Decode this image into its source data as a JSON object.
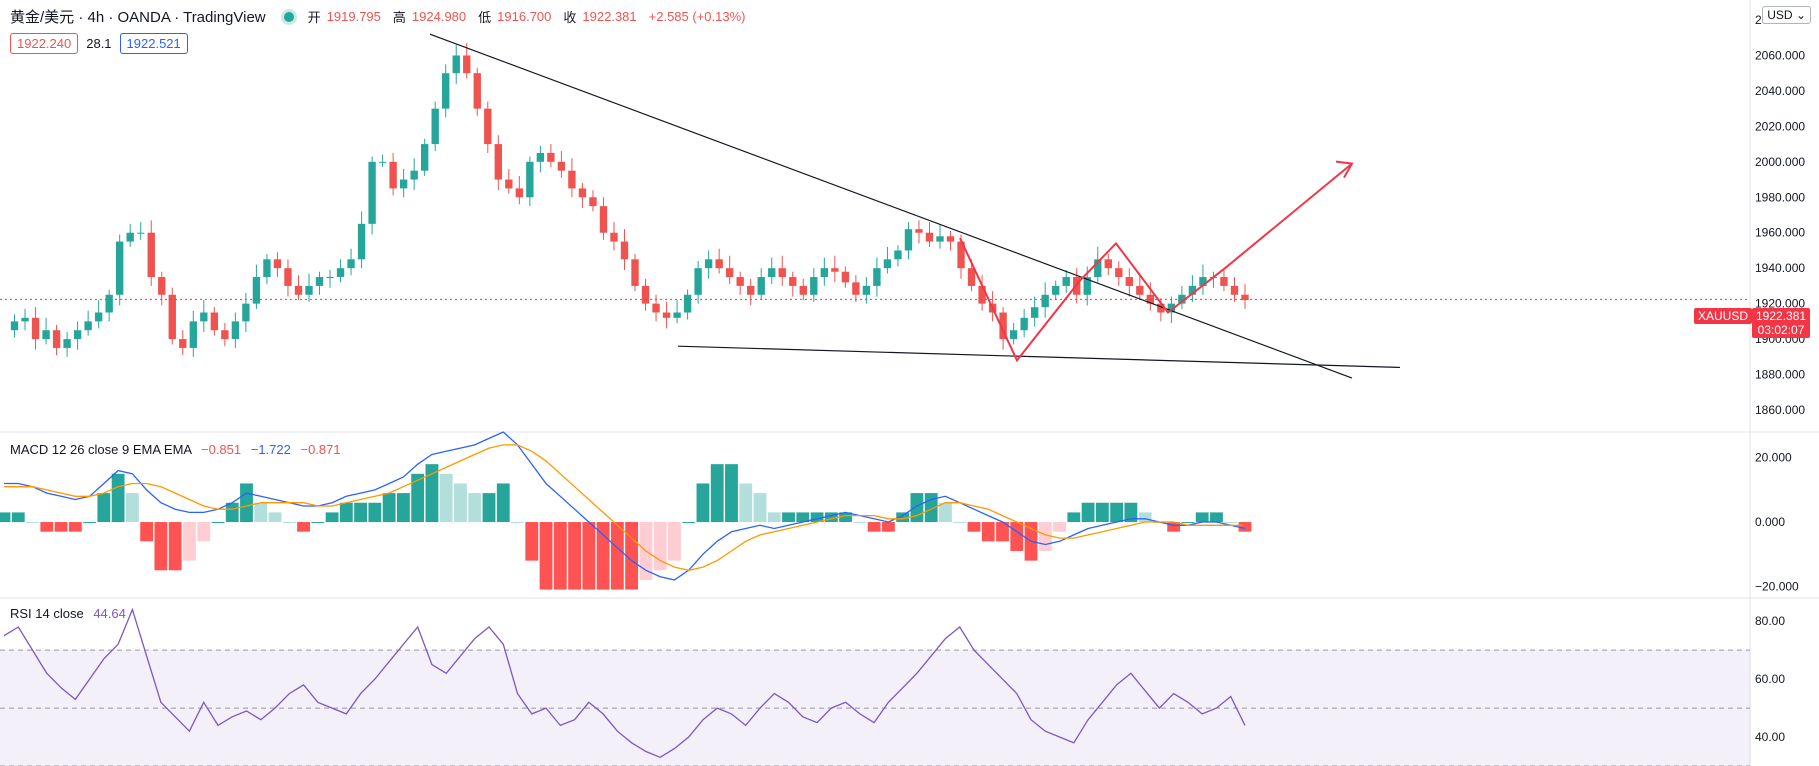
{
  "header": {
    "symbol": "黄金/美元 · 4h · OANDA · TradingView",
    "open_label": "开",
    "open": "1919.795",
    "high_label": "高",
    "high": "1924.980",
    "low_label": "低",
    "low": "1916.700",
    "close_label": "收",
    "close": "1922.381",
    "change": "+2.585 (+0.13%)"
  },
  "quote": {
    "sell": "1922.240",
    "spread": "28.1",
    "buy": "1922.521"
  },
  "currency_button": "USD",
  "price_tag": {
    "symbol": "XAUUSD",
    "price": "1922.381",
    "countdown": "03:02:07"
  },
  "macd": {
    "label": "MACD 12 26 close 9 EMA EMA",
    "v1": "−0.851",
    "v2": "−1.722",
    "v3": "−0.871"
  },
  "rsi": {
    "label": "RSI 14 close",
    "value": "44.64"
  },
  "colors": {
    "up": "#26a69a",
    "down": "#ef5350",
    "macd": "#2962ff",
    "signal": "#ff9800",
    "rsi": "#7e57c2",
    "trend": "#131722",
    "pattern": "#f23645"
  },
  "chart_data": [
    {
      "type": "candlestick",
      "title": "黄金/美元 · 4h · OANDA",
      "y_ticks": [
        "2080.000",
        "2060.000",
        "2040.000",
        "2020.000",
        "2000.000",
        "1980.000",
        "1960.000",
        "1940.000",
        "1920.000",
        "1900.000",
        "1880.000",
        "1860.000"
      ],
      "ylim": [
        1860,
        2080
      ],
      "close_path": [
        1905,
        1910,
        1912,
        1900,
        1905,
        1895,
        1900,
        1905,
        1910,
        1915,
        1925,
        1955,
        1960,
        1960,
        1935,
        1925,
        1900,
        1895,
        1910,
        1915,
        1905,
        1900,
        1910,
        1920,
        1935,
        1945,
        1940,
        1930,
        1925,
        1930,
        1935,
        1935,
        1940,
        1945,
        1965,
        2000,
        2000,
        1985,
        1990,
        1995,
        2010,
        2030,
        2050,
        2060,
        2050,
        2030,
        2010,
        1990,
        1985,
        1980,
        2000,
        2005,
        2000,
        1995,
        1985,
        1980,
        1975,
        1960,
        1955,
        1945,
        1930,
        1920,
        1915,
        1912,
        1915,
        1925,
        1940,
        1945,
        1940,
        1935,
        1930,
        1925,
        1935,
        1940,
        1935,
        1930,
        1925,
        1935,
        1940,
        1938,
        1932,
        1925,
        1930,
        1940,
        1945,
        1950,
        1962,
        1960,
        1955,
        1958,
        1955,
        1940,
        1930,
        1920,
        1915,
        1900,
        1905,
        1912,
        1918,
        1925,
        1930,
        1935,
        1925,
        1935,
        1945,
        1940,
        1935,
        1930,
        1925,
        1920,
        1915,
        1920,
        1925,
        1930,
        1935,
        1935,
        1930,
        1925,
        1922
      ],
      "trend_lines": [
        {
          "from": [
            1,
            2072
          ],
          "to": [
            2,
            1878
          ]
        },
        {
          "from": [
            1,
            1896
          ],
          "to": [
            2,
            1884
          ]
        }
      ],
      "pattern_path": [
        1957,
        1888,
        1933,
        1954,
        1915,
        1940,
        1999
      ]
    },
    {
      "type": "line",
      "title": "MACD 12 26 close 9 EMA EMA",
      "y_ticks": [
        "20.000",
        "0.000",
        "−20.000"
      ],
      "ylim": [
        -23,
        28
      ],
      "series": [
        {
          "name": "MACD",
          "values": [
            12,
            12,
            11,
            9,
            8,
            7,
            8,
            12,
            16,
            15,
            10,
            6,
            4,
            3,
            3,
            4,
            6,
            9,
            8,
            7,
            6,
            5,
            5,
            6,
            8,
            9,
            10,
            12,
            14,
            18,
            21,
            22,
            23,
            24,
            26,
            28,
            24,
            18,
            12,
            8,
            4,
            0,
            -4,
            -8,
            -12,
            -15,
            -17,
            -18,
            -15,
            -10,
            -6,
            -3,
            -2,
            -1,
            -2,
            -1,
            0,
            1,
            2,
            3,
            2,
            1,
            0,
            2,
            5,
            7,
            8,
            6,
            4,
            2,
            0,
            -3,
            -6,
            -7,
            -6,
            -4,
            -2,
            -1,
            0,
            1,
            1,
            0,
            -1,
            -1,
            0,
            0,
            -1,
            -2
          ]
        },
        {
          "name": "Signal",
          "values": [
            11,
            11,
            11,
            10,
            9,
            8,
            8,
            9,
            11,
            12,
            12,
            11,
            9,
            7,
            5,
            4,
            4,
            5,
            6,
            6,
            6,
            6,
            5,
            5,
            6,
            7,
            8,
            9,
            11,
            13,
            15,
            17,
            19,
            21,
            23,
            24,
            24,
            22,
            19,
            15,
            11,
            7,
            3,
            -1,
            -5,
            -9,
            -12,
            -14,
            -15,
            -14,
            -12,
            -9,
            -6,
            -4,
            -3,
            -2,
            -1,
            0,
            1,
            2,
            2,
            2,
            1,
            1,
            2,
            4,
            6,
            6,
            5,
            4,
            2,
            0,
            -2,
            -4,
            -5,
            -5,
            -4,
            -3,
            -2,
            -1,
            0,
            0,
            0,
            -1,
            -1,
            -1,
            -1,
            -1
          ]
        }
      ]
    },
    {
      "type": "line",
      "title": "RSI 14 close",
      "y_ticks": [
        "80.00",
        "60.00",
        "40.00"
      ],
      "ylim": [
        30,
        88
      ],
      "series": [
        {
          "name": "RSI",
          "values": [
            75,
            78,
            70,
            62,
            57,
            53,
            60,
            67,
            72,
            84,
            68,
            52,
            47,
            42,
            52,
            44,
            47,
            49,
            46,
            50,
            55,
            58,
            52,
            50,
            48,
            55,
            60,
            66,
            72,
            78,
            65,
            62,
            68,
            74,
            78,
            72,
            55,
            48,
            50,
            44,
            46,
            52,
            48,
            42,
            38,
            35,
            33,
            36,
            40,
            46,
            50,
            48,
            44,
            50,
            55,
            52,
            47,
            45,
            50,
            52,
            48,
            45,
            52,
            57,
            62,
            68,
            74,
            78,
            70,
            65,
            60,
            55,
            46,
            42,
            40,
            38,
            46,
            52,
            58,
            62,
            56,
            50,
            55,
            52,
            48,
            50,
            54,
            44
          ]
        }
      ]
    }
  ]
}
